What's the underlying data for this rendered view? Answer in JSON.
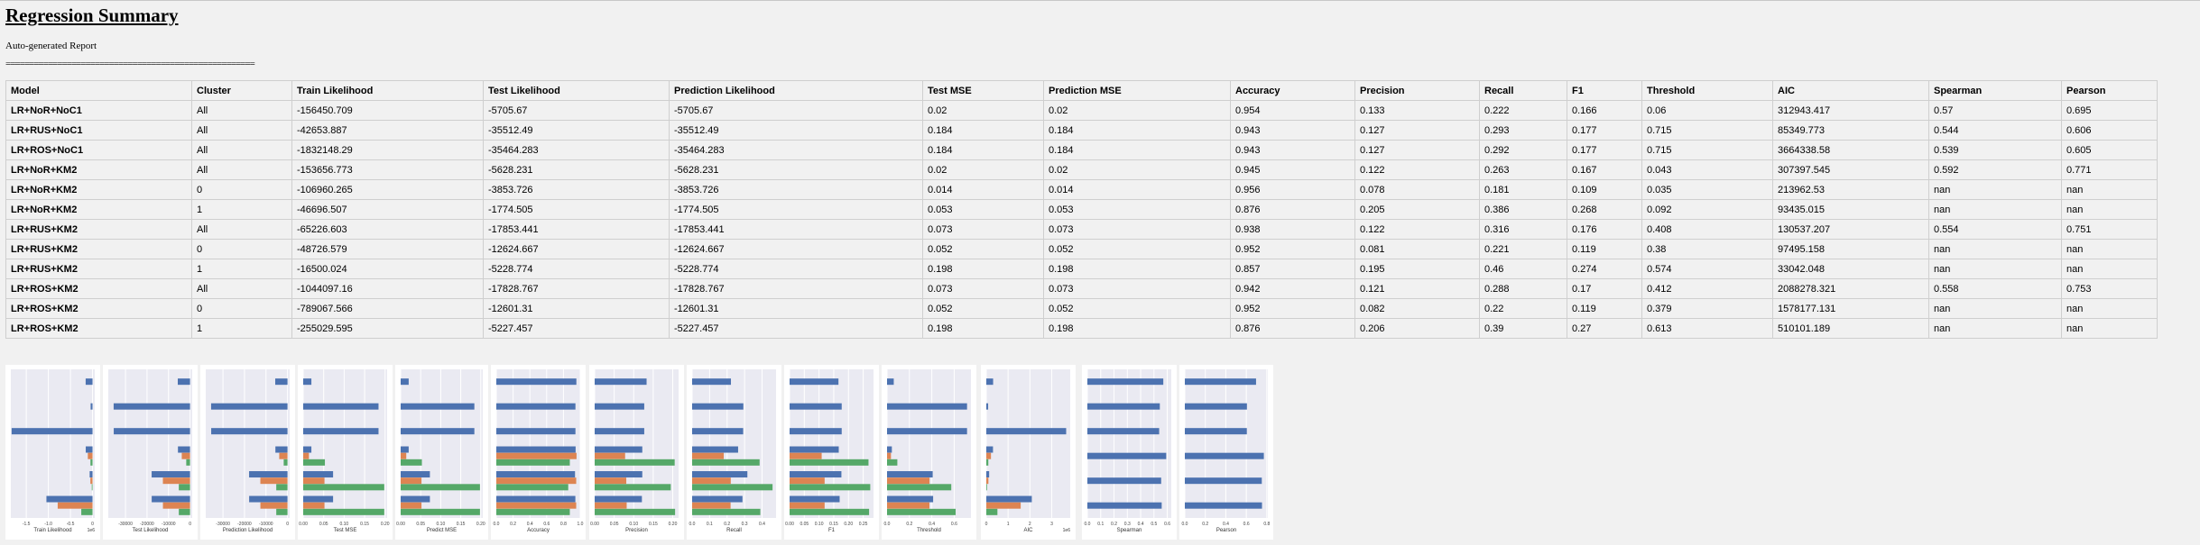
{
  "report": {
    "title": "Regression Summary",
    "subtitle": "Auto-generated Report",
    "divider": "====================================================="
  },
  "table": {
    "columns": [
      "Model",
      "Cluster",
      "Train Likelihood",
      "Test Likelihood",
      "Prediction Likelihood",
      "Test MSE",
      "Prediction MSE",
      "Accuracy",
      "Precision",
      "Recall",
      "F1",
      "Threshold",
      "AIC",
      "Spearman",
      "Pearson"
    ],
    "rows": [
      [
        "LR+NoR+NoC1",
        "All",
        "-156450.709",
        "-5705.67",
        "-5705.67",
        "0.02",
        "0.02",
        "0.954",
        "0.133",
        "0.222",
        "0.166",
        "0.06",
        "312943.417",
        "0.57",
        "0.695"
      ],
      [
        "LR+RUS+NoC1",
        "All",
        "-42653.887",
        "-35512.49",
        "-35512.49",
        "0.184",
        "0.184",
        "0.943",
        "0.127",
        "0.293",
        "0.177",
        "0.715",
        "85349.773",
        "0.544",
        "0.606"
      ],
      [
        "LR+ROS+NoC1",
        "All",
        "-1832148.29",
        "-35464.283",
        "-35464.283",
        "0.184",
        "0.184",
        "0.943",
        "0.127",
        "0.292",
        "0.177",
        "0.715",
        "3664338.58",
        "0.539",
        "0.605"
      ],
      [
        "LR+NoR+KM2",
        "All",
        "-153656.773",
        "-5628.231",
        "-5628.231",
        "0.02",
        "0.02",
        "0.945",
        "0.122",
        "0.263",
        "0.167",
        "0.043",
        "307397.545",
        "0.592",
        "0.771"
      ],
      [
        "LR+NoR+KM2",
        "0",
        "-106960.265",
        "-3853.726",
        "-3853.726",
        "0.014",
        "0.014",
        "0.956",
        "0.078",
        "0.181",
        "0.109",
        "0.035",
        "213962.53",
        "nan",
        "nan"
      ],
      [
        "LR+NoR+KM2",
        "1",
        "-46696.507",
        "-1774.505",
        "-1774.505",
        "0.053",
        "0.053",
        "0.876",
        "0.205",
        "0.386",
        "0.268",
        "0.092",
        "93435.015",
        "nan",
        "nan"
      ],
      [
        "LR+RUS+KM2",
        "All",
        "-65226.603",
        "-17853.441",
        "-17853.441",
        "0.073",
        "0.073",
        "0.938",
        "0.122",
        "0.316",
        "0.176",
        "0.408",
        "130537.207",
        "0.554",
        "0.751"
      ],
      [
        "LR+RUS+KM2",
        "0",
        "-48726.579",
        "-12624.667",
        "-12624.667",
        "0.052",
        "0.052",
        "0.952",
        "0.081",
        "0.221",
        "0.119",
        "0.38",
        "97495.158",
        "nan",
        "nan"
      ],
      [
        "LR+RUS+KM2",
        "1",
        "-16500.024",
        "-5228.774",
        "-5228.774",
        "0.198",
        "0.198",
        "0.857",
        "0.195",
        "0.46",
        "0.274",
        "0.574",
        "33042.048",
        "nan",
        "nan"
      ],
      [
        "LR+ROS+KM2",
        "All",
        "-1044097.16",
        "-17828.767",
        "-17828.767",
        "0.073",
        "0.073",
        "0.942",
        "0.121",
        "0.288",
        "0.17",
        "0.412",
        "2088278.321",
        "0.558",
        "0.753"
      ],
      [
        "LR+ROS+KM2",
        "0",
        "-789067.566",
        "-12601.31",
        "-12601.31",
        "0.052",
        "0.052",
        "0.952",
        "0.082",
        "0.22",
        "0.119",
        "0.379",
        "1578177.131",
        "nan",
        "nan"
      ],
      [
        "LR+ROS+KM2",
        "1",
        "-255029.595",
        "-5227.457",
        "-5227.457",
        "0.198",
        "0.198",
        "0.876",
        "0.206",
        "0.39",
        "0.27",
        "0.613",
        "510101.189",
        "nan",
        "nan"
      ]
    ]
  },
  "chart_data": [
    {
      "type": "bar",
      "orientation": "horizontal",
      "xlabel": "Train Likelihood",
      "offset_label": "1e6",
      "xlim": [
        -1.85,
        0.05
      ],
      "ticks": [
        -1.5,
        -1.0,
        -0.5,
        0
      ],
      "tick_labels": [
        "-1.5",
        "-1.0",
        "-0.5",
        "0"
      ],
      "groups": [
        {
          "values": [
            -0.156
          ]
        },
        {
          "values": [
            -0.043
          ]
        },
        {
          "values": [
            -1.832
          ]
        },
        {
          "values": [
            -0.154,
            -0.107,
            -0.047
          ]
        },
        {
          "values": [
            -0.065,
            -0.049,
            -0.017
          ]
        },
        {
          "values": [
            -1.044,
            -0.789,
            -0.255
          ]
        }
      ]
    },
    {
      "type": "bar",
      "orientation": "horizontal",
      "xlabel": "Test Likelihood",
      "xlim": [
        -38000,
        1000
      ],
      "ticks": [
        -30000,
        -20000,
        -10000,
        0
      ],
      "tick_labels": [
        "-30000",
        "-20000",
        "-10000",
        "0"
      ],
      "groups": [
        {
          "values": [
            -5705.67
          ]
        },
        {
          "values": [
            -35512.49
          ]
        },
        {
          "values": [
            -35464.283
          ]
        },
        {
          "values": [
            -5628.231,
            -3853.726,
            -1774.505
          ]
        },
        {
          "values": [
            -17853.441,
            -12624.667,
            -5228.774
          ]
        },
        {
          "values": [
            -17828.767,
            -12601.31,
            -5227.457
          ]
        }
      ]
    },
    {
      "type": "bar",
      "orientation": "horizontal",
      "xlabel": "Prediction Likelihood",
      "xlim": [
        -38000,
        1000
      ],
      "ticks": [
        -30000,
        -20000,
        -10000,
        0
      ],
      "tick_labels": [
        "-30000",
        "-20000",
        "-10000",
        "0"
      ],
      "groups": [
        {
          "values": [
            -5705.67
          ]
        },
        {
          "values": [
            -35512.49
          ]
        },
        {
          "values": [
            -35464.283
          ]
        },
        {
          "values": [
            -5628.231,
            -3853.726,
            -1774.505
          ]
        },
        {
          "values": [
            -17853.441,
            -12624.667,
            -5228.774
          ]
        },
        {
          "values": [
            -17828.767,
            -12601.31,
            -5227.457
          ]
        }
      ]
    },
    {
      "type": "bar",
      "orientation": "horizontal",
      "xlabel": "Test MSE",
      "xlim": [
        0,
        0.205
      ],
      "ticks": [
        0,
        0.05,
        0.1,
        0.15,
        0.2
      ],
      "tick_labels": [
        "0.00",
        "0.05",
        "0.10",
        "0.15",
        "0.20"
      ],
      "groups": [
        {
          "values": [
            0.02
          ]
        },
        {
          "values": [
            0.184
          ]
        },
        {
          "values": [
            0.184
          ]
        },
        {
          "values": [
            0.02,
            0.014,
            0.053
          ]
        },
        {
          "values": [
            0.073,
            0.052,
            0.198
          ]
        },
        {
          "values": [
            0.073,
            0.052,
            0.198
          ]
        }
      ]
    },
    {
      "type": "bar",
      "orientation": "horizontal",
      "xlabel": "Predict MSE",
      "xlim": [
        0,
        0.205
      ],
      "ticks": [
        0,
        0.05,
        0.1,
        0.15,
        0.2
      ],
      "tick_labels": [
        "0.00",
        "0.05",
        "0.10",
        "0.15",
        "0.20"
      ],
      "groups": [
        {
          "values": [
            0.02
          ]
        },
        {
          "values": [
            0.184
          ]
        },
        {
          "values": [
            0.184
          ]
        },
        {
          "values": [
            0.02,
            0.014,
            0.053
          ]
        },
        {
          "values": [
            0.073,
            0.052,
            0.198
          ]
        },
        {
          "values": [
            0.073,
            0.052,
            0.198
          ]
        }
      ]
    },
    {
      "type": "bar",
      "orientation": "horizontal",
      "xlabel": "Accuracy",
      "xlim": [
        0,
        1.0
      ],
      "ticks": [
        0,
        0.2,
        0.4,
        0.6,
        0.8,
        1.0
      ],
      "tick_labels": [
        "0.0",
        "0.2",
        "0.4",
        "0.6",
        "0.8",
        "1.0"
      ],
      "groups": [
        {
          "values": [
            0.954
          ]
        },
        {
          "values": [
            0.943
          ]
        },
        {
          "values": [
            0.943
          ]
        },
        {
          "values": [
            0.945,
            0.956,
            0.876
          ]
        },
        {
          "values": [
            0.938,
            0.952,
            0.857
          ]
        },
        {
          "values": [
            0.942,
            0.952,
            0.876
          ]
        }
      ]
    },
    {
      "type": "bar",
      "orientation": "horizontal",
      "xlabel": "Precision",
      "xlim": [
        0,
        0.215
      ],
      "ticks": [
        0,
        0.05,
        0.1,
        0.15,
        0.2
      ],
      "tick_labels": [
        "0.00",
        "0.05",
        "0.10",
        "0.15",
        "0.20"
      ],
      "groups": [
        {
          "values": [
            0.133
          ]
        },
        {
          "values": [
            0.127
          ]
        },
        {
          "values": [
            0.127
          ]
        },
        {
          "values": [
            0.122,
            0.078,
            0.205
          ]
        },
        {
          "values": [
            0.122,
            0.081,
            0.195
          ]
        },
        {
          "values": [
            0.121,
            0.082,
            0.206
          ]
        }
      ]
    },
    {
      "type": "bar",
      "orientation": "horizontal",
      "xlabel": "Recall",
      "xlim": [
        0,
        0.48
      ],
      "ticks": [
        0,
        0.1,
        0.2,
        0.3,
        0.4
      ],
      "tick_labels": [
        "0.0",
        "0.1",
        "0.2",
        "0.3",
        "0.4"
      ],
      "groups": [
        {
          "values": [
            0.222
          ]
        },
        {
          "values": [
            0.293
          ]
        },
        {
          "values": [
            0.292
          ]
        },
        {
          "values": [
            0.263,
            0.181,
            0.386
          ]
        },
        {
          "values": [
            0.316,
            0.221,
            0.46
          ]
        },
        {
          "values": [
            0.288,
            0.22,
            0.39
          ]
        }
      ]
    },
    {
      "type": "bar",
      "orientation": "horizontal",
      "xlabel": "F1",
      "xlim": [
        0,
        0.285
      ],
      "ticks": [
        0,
        0.05,
        0.1,
        0.15,
        0.2,
        0.25
      ],
      "tick_labels": [
        "0.00",
        "0.05",
        "0.10",
        "0.15",
        "0.20",
        "0.25"
      ],
      "groups": [
        {
          "values": [
            0.166
          ]
        },
        {
          "values": [
            0.177
          ]
        },
        {
          "values": [
            0.177
          ]
        },
        {
          "values": [
            0.167,
            0.109,
            0.268
          ]
        },
        {
          "values": [
            0.176,
            0.119,
            0.274
          ]
        },
        {
          "values": [
            0.17,
            0.119,
            0.27
          ]
        }
      ]
    },
    {
      "type": "bar",
      "orientation": "horizontal",
      "xlabel": "Threshold",
      "xlim": [
        0,
        0.75
      ],
      "ticks": [
        0,
        0.2,
        0.4,
        0.6
      ],
      "tick_labels": [
        "0.0",
        "0.2",
        "0.4",
        "0.6"
      ],
      "groups": [
        {
          "values": [
            0.06
          ]
        },
        {
          "values": [
            0.715
          ]
        },
        {
          "values": [
            0.715
          ]
        },
        {
          "values": [
            0.043,
            0.035,
            0.092
          ]
        },
        {
          "values": [
            0.408,
            0.38,
            0.574
          ]
        },
        {
          "values": [
            0.412,
            0.379,
            0.613
          ]
        }
      ]
    },
    {
      "type": "bar",
      "orientation": "horizontal",
      "xlabel": "AIC",
      "offset_label": "1e6",
      "xlim": [
        0,
        3.85
      ],
      "ticks": [
        0,
        1,
        2,
        3
      ],
      "tick_labels": [
        "0",
        "1",
        "2",
        "3"
      ],
      "groups": [
        {
          "values": [
            0.313
          ]
        },
        {
          "values": [
            0.085
          ]
        },
        {
          "values": [
            3.664
          ]
        },
        {
          "values": [
            0.307,
            0.214,
            0.093
          ]
        },
        {
          "values": [
            0.131,
            0.097,
            0.033
          ]
        },
        {
          "values": [
            2.088,
            1.578,
            0.51
          ]
        }
      ]
    },
    {
      "type": "bar",
      "orientation": "horizontal",
      "xlabel": "Spearman",
      "xlim": [
        0,
        0.63
      ],
      "ticks": [
        0,
        0.1,
        0.2,
        0.3,
        0.4,
        0.5,
        0.6
      ],
      "tick_labels": [
        "0.0",
        "0.1",
        "0.2",
        "0.3",
        "0.4",
        "0.5",
        "0.6"
      ],
      "groups": [
        {
          "values": [
            0.57
          ]
        },
        {
          "values": [
            0.544
          ]
        },
        {
          "values": [
            0.539
          ]
        },
        {
          "values": [
            0.592
          ]
        },
        {
          "values": [
            0.554
          ]
        },
        {
          "values": [
            0.558
          ]
        }
      ]
    },
    {
      "type": "bar",
      "orientation": "horizontal",
      "xlabel": "Pearson",
      "xlim": [
        0,
        0.81
      ],
      "ticks": [
        0,
        0.2,
        0.4,
        0.6,
        0.8
      ],
      "tick_labels": [
        "0.0",
        "0.2",
        "0.4",
        "0.6",
        "0.8"
      ],
      "groups": [
        {
          "values": [
            0.695
          ]
        },
        {
          "values": [
            0.606
          ]
        },
        {
          "values": [
            0.605
          ]
        },
        {
          "values": [
            0.771
          ]
        },
        {
          "values": [
            0.751
          ]
        },
        {
          "values": [
            0.753
          ]
        }
      ]
    }
  ],
  "colors": {
    "bar_colors": [
      "#4c72b0",
      "#dd8452",
      "#55a868"
    ],
    "plot_bg": "#eaeaf2",
    "grid": "#ffffff",
    "panel_bg": "#ffffff"
  }
}
